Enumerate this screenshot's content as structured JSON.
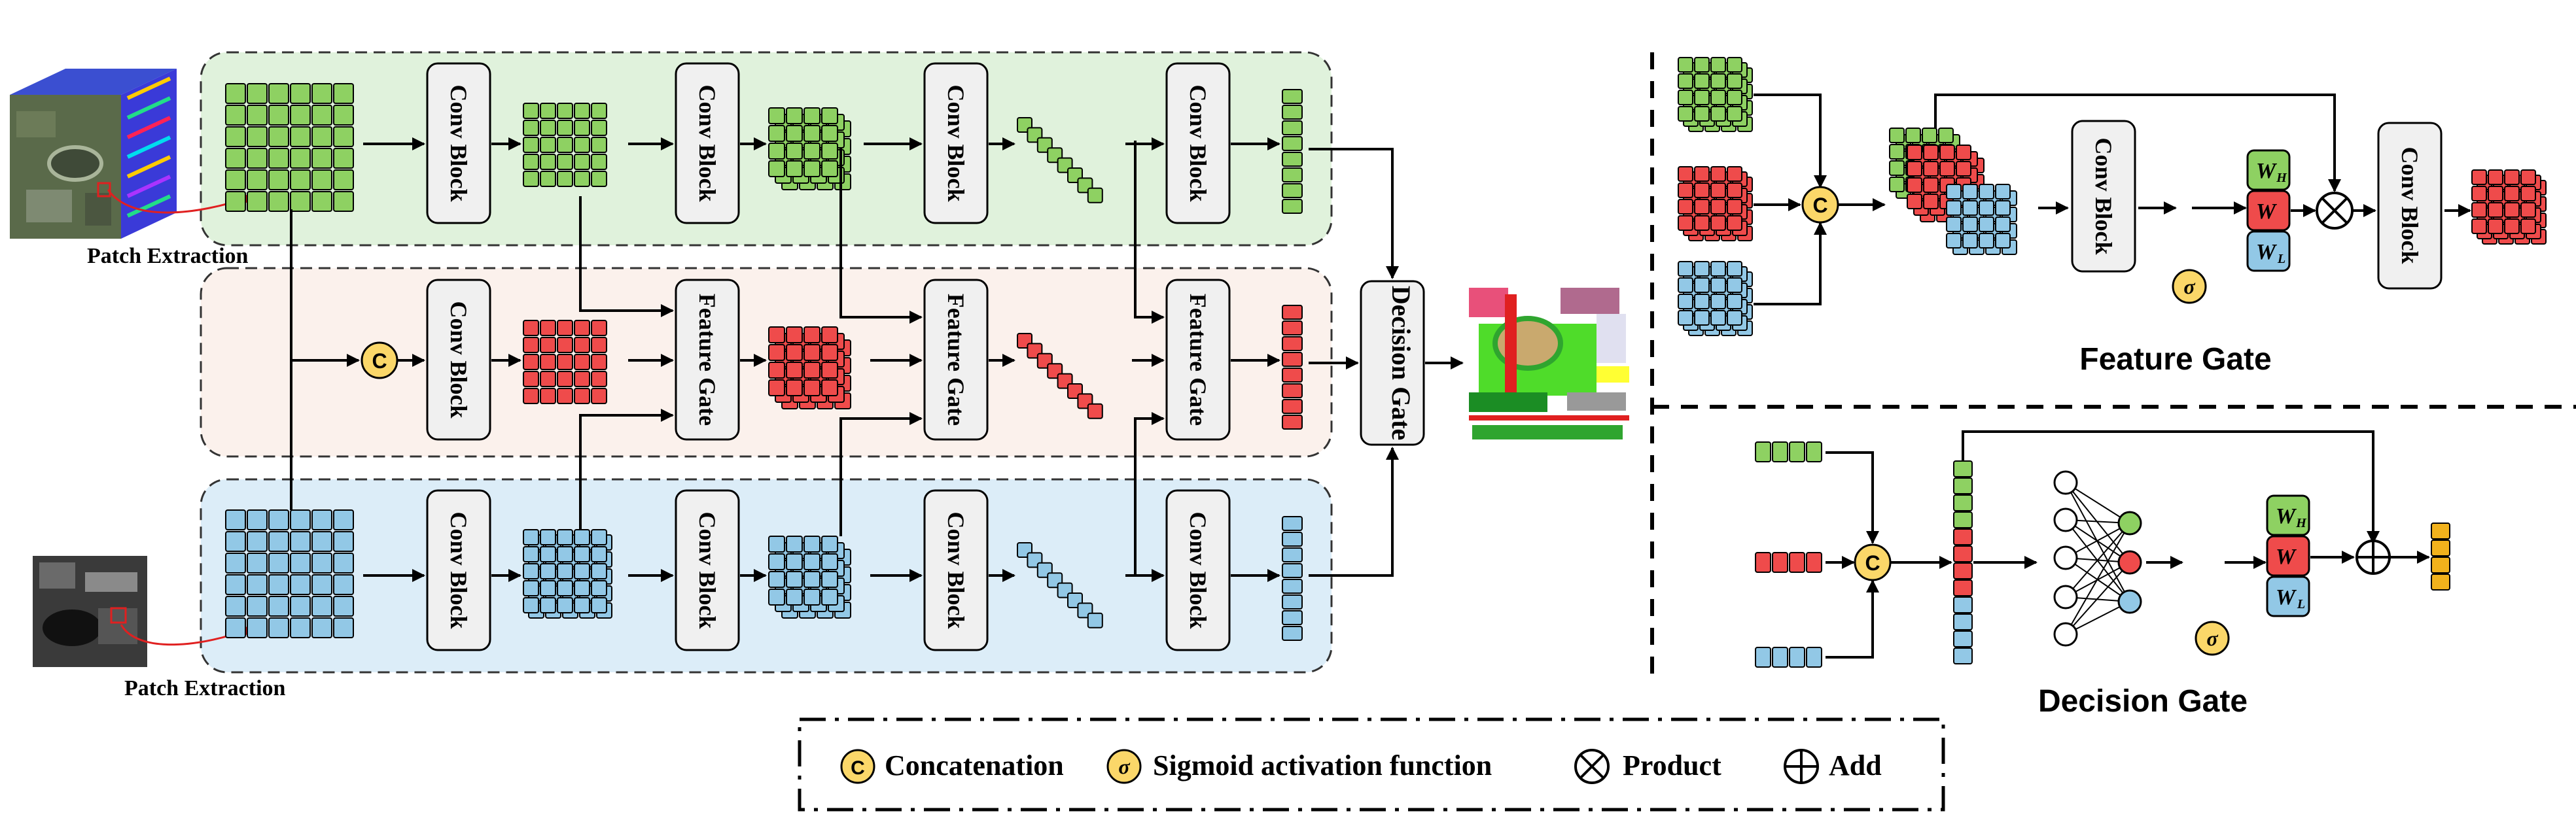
{
  "labels": {
    "patch_extraction_top": "Patch Extraction",
    "patch_extraction_bottom": "Patch Extraction",
    "conv_block": "Conv Block",
    "feature_gate_block": "Feature Gate",
    "decision_gate_block": "Decision Gate",
    "concat_symbol": "C",
    "sigma_symbol": "σ"
  },
  "panels": {
    "feature_gate_title": "Feature Gate",
    "decision_gate_title": "Decision Gate",
    "weight_h": "W",
    "weight_h_sub": "H",
    "weight_w": "W",
    "weight_l": "W",
    "weight_l_sub": "L"
  },
  "legend": {
    "concat": "Concatenation",
    "sigmoid": "Sigmoid activation function",
    "product": "Product",
    "add": "Add"
  },
  "colors": {
    "green_fill": "#8ed162",
    "red_fill": "#ef4b4b",
    "blue_fill": "#92c8e6",
    "orange_fill": "#f2b21c",
    "green_band": "#e0f2dc",
    "red_band": "#fbf1ec",
    "blue_band": "#dcedf8",
    "block_fill": "#f0f0f0",
    "concat_fill": "#fbd769"
  }
}
